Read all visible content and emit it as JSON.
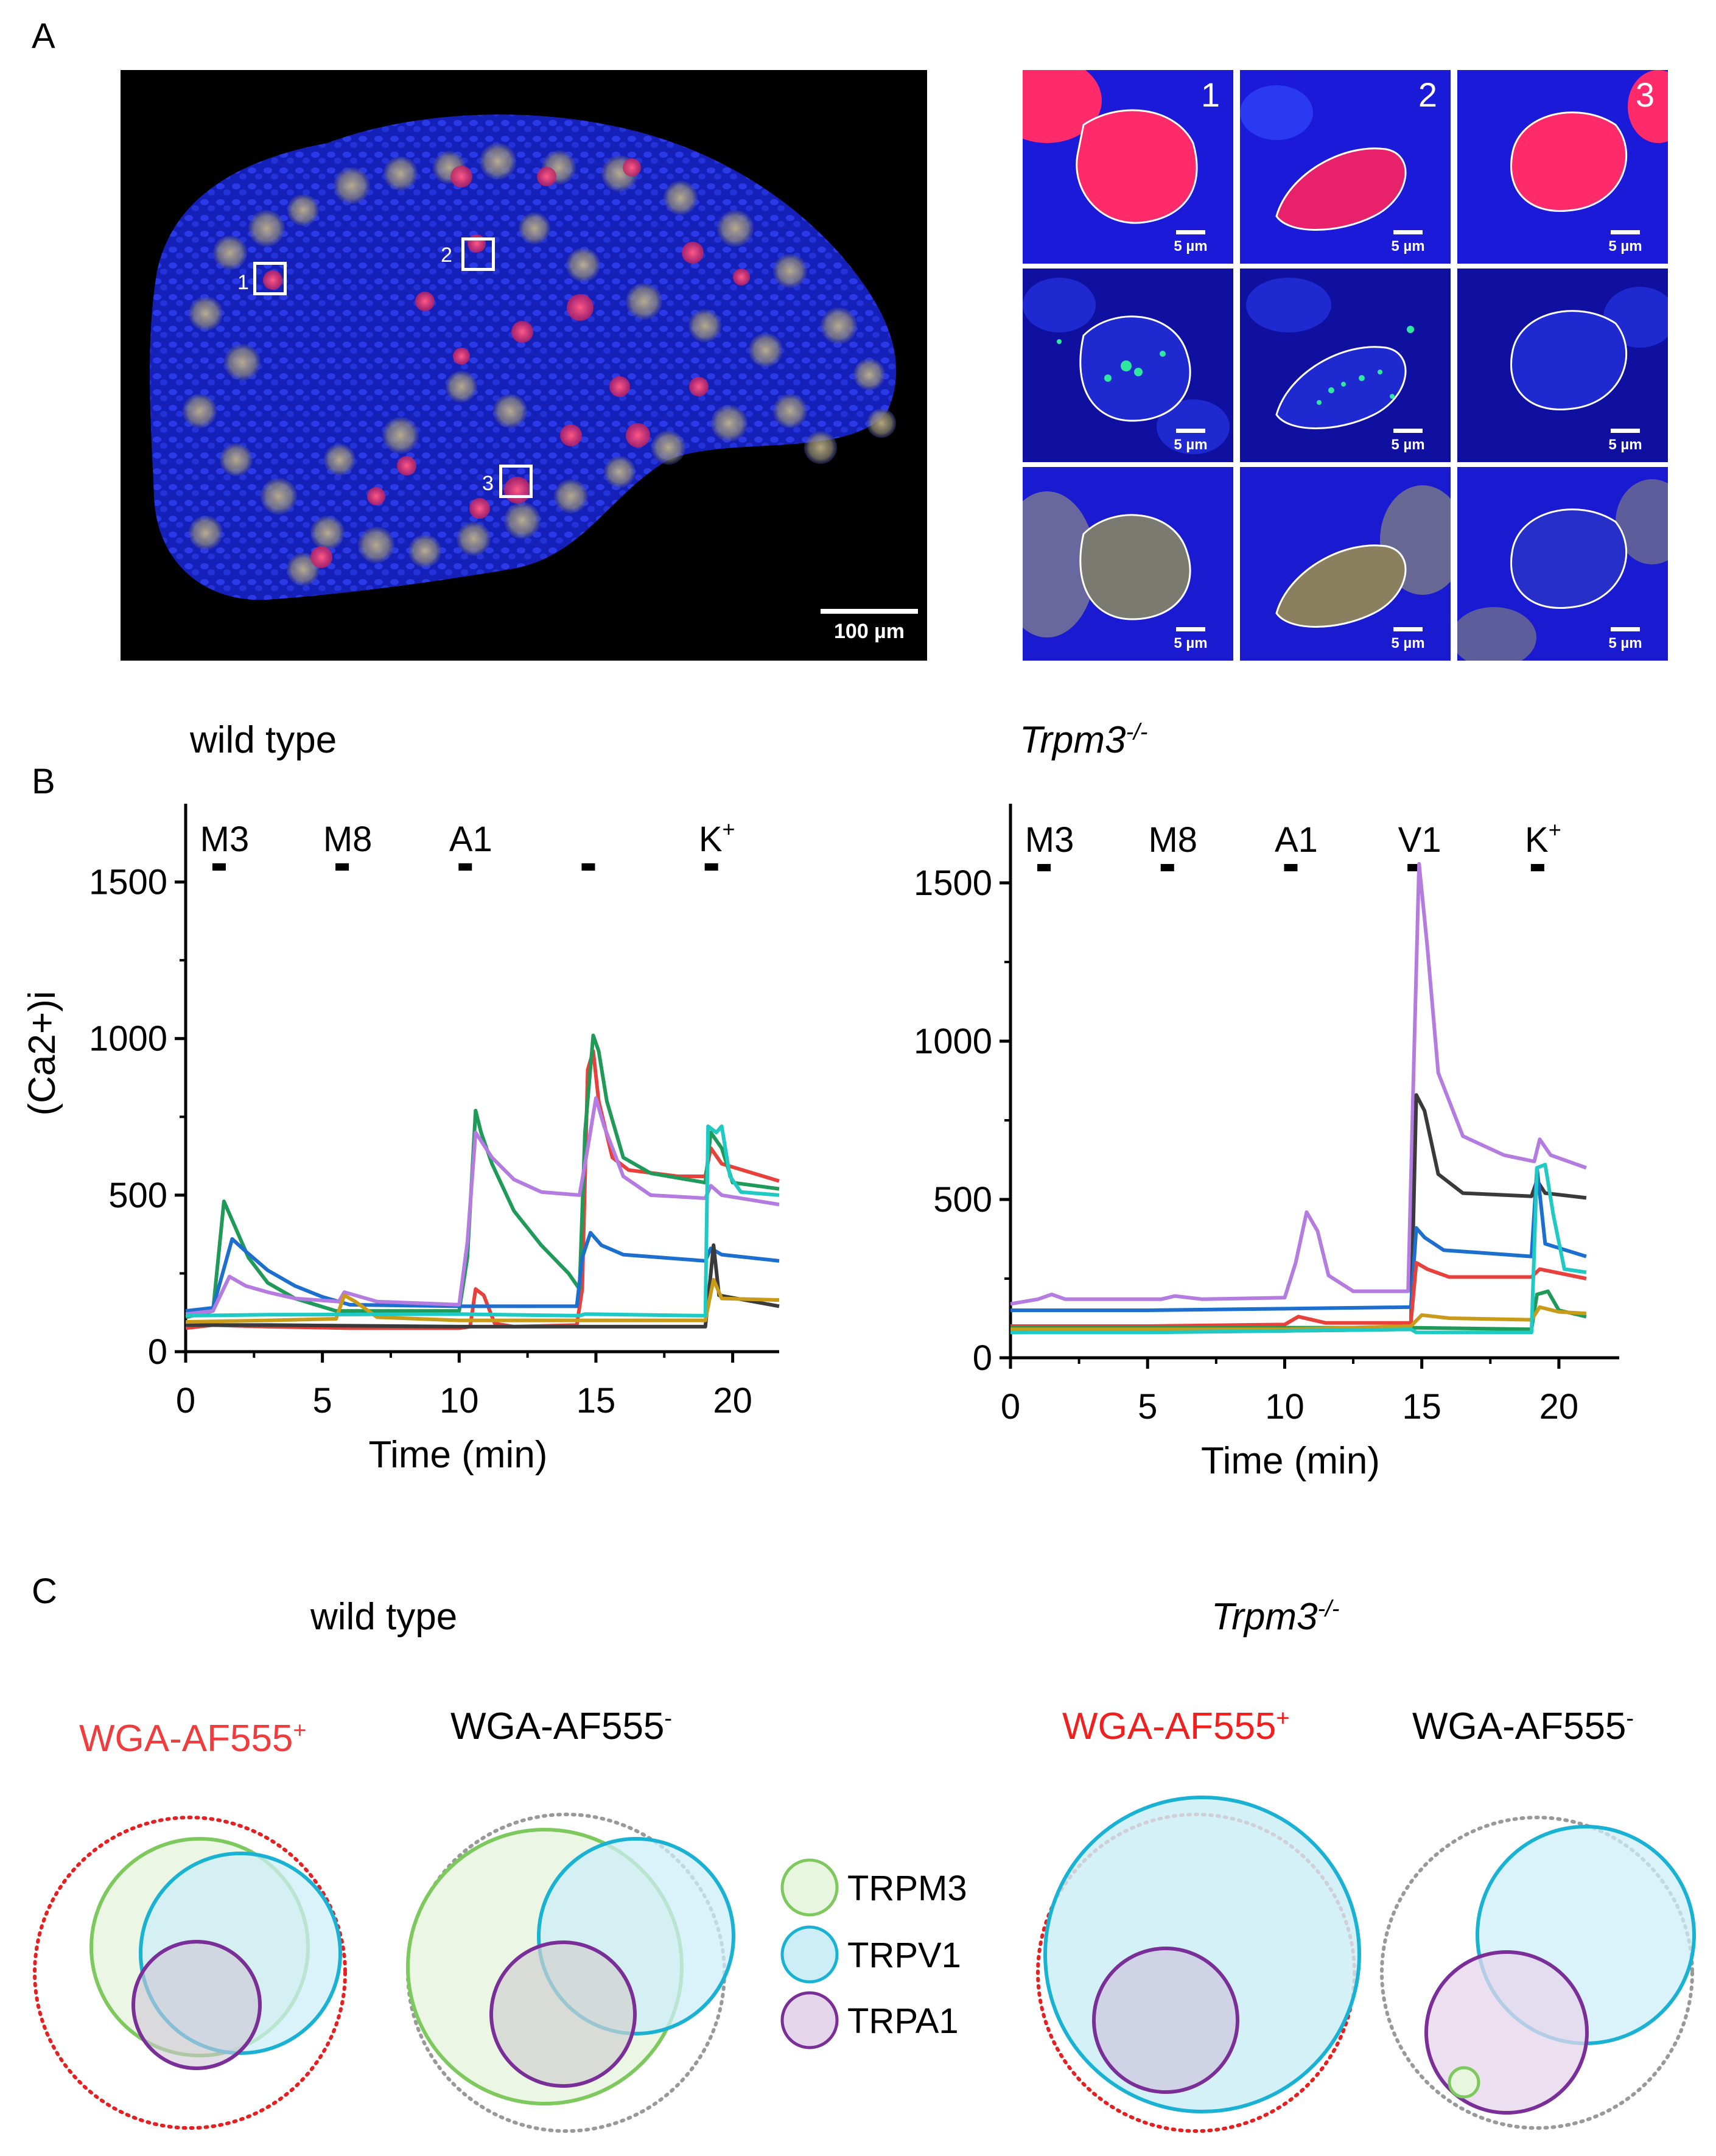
{
  "panelA": {
    "letter": "A",
    "scale_bar": "100 µm",
    "boxes": [
      "1",
      "2",
      "3"
    ],
    "tile_numbers": [
      "1",
      "2",
      "3"
    ],
    "tile_scale": "5 µm"
  },
  "panelB": {
    "letter": "B",
    "left_title": "wild type",
    "right_title": "Trpm3",
    "right_title_sup": "-/-"
  },
  "panelC": {
    "letter": "C",
    "left_title": "wild type",
    "right_title": "Trpm3",
    "right_title_sup": "-/-",
    "wga_pos": "WGA-AF555",
    "wga_pos_sup": "+",
    "wga_neg": "WGA-AF555",
    "wga_neg_sup": "-",
    "legend": [
      {
        "label": "TRPM3",
        "stroke": "#7dc95e",
        "fill": "#e8f5df"
      },
      {
        "label": "TRPV1",
        "stroke": "#1ab2d4",
        "fill": "#cdeef7"
      },
      {
        "label": "TRPA1",
        "stroke": "#7a2f98",
        "fill": "#e5d6eb"
      }
    ]
  },
  "chart_data": [
    {
      "type": "line",
      "title": "wild type",
      "xlabel": "Time (min)",
      "ylabel": "(Ca2+)i",
      "xlim": [
        0,
        21.7
      ],
      "ylim": [
        0,
        1750
      ],
      "xticks": [
        0,
        5,
        10,
        15,
        20
      ],
      "yticks": [
        0,
        500,
        1000,
        1500
      ],
      "stimuli": [
        {
          "label": "M3",
          "sup": "",
          "time": 1.2
        },
        {
          "label": "M8",
          "sup": "",
          "time": 5.7
        },
        {
          "label": "A1",
          "sup": "",
          "time": 10.2
        },
        {
          "label": "",
          "sup": "",
          "time": 14.7
        },
        {
          "label": "K",
          "sup": "+",
          "time": 19.2
        }
      ],
      "series": [
        {
          "name": "red",
          "color": "#e8413c",
          "points": [
            [
              0,
              75
            ],
            [
              1,
              85
            ],
            [
              3,
              80
            ],
            [
              6,
              75
            ],
            [
              10,
              75
            ],
            [
              10.4,
              80
            ],
            [
              10.6,
              200
            ],
            [
              10.9,
              180
            ],
            [
              11.3,
              90
            ],
            [
              12,
              80
            ],
            [
              14.3,
              85
            ],
            [
              14.5,
              200
            ],
            [
              14.7,
              900
            ],
            [
              14.9,
              960
            ],
            [
              15.1,
              800
            ],
            [
              15.6,
              620
            ],
            [
              16.2,
              580
            ],
            [
              18,
              560
            ],
            [
              19,
              560
            ],
            [
              19.2,
              650
            ],
            [
              19.6,
              600
            ],
            [
              21.7,
              545
            ]
          ]
        },
        {
          "name": "green",
          "color": "#1f9a58",
          "points": [
            [
              0,
              110
            ],
            [
              1,
              130
            ],
            [
              1.4,
              480
            ],
            [
              1.7,
              420
            ],
            [
              2.3,
              300
            ],
            [
              3,
              220
            ],
            [
              4,
              170
            ],
            [
              5.5,
              130
            ],
            [
              6,
              130
            ],
            [
              10,
              130
            ],
            [
              10.3,
              300
            ],
            [
              10.6,
              770
            ],
            [
              10.8,
              700
            ],
            [
              11.2,
              600
            ],
            [
              12,
              450
            ],
            [
              13,
              340
            ],
            [
              14,
              250
            ],
            [
              14.4,
              200
            ],
            [
              14.6,
              700
            ],
            [
              14.9,
              1010
            ],
            [
              15.1,
              960
            ],
            [
              15.4,
              800
            ],
            [
              16,
              620
            ],
            [
              17,
              570
            ],
            [
              19,
              540
            ],
            [
              19.2,
              700
            ],
            [
              19.6,
              650
            ],
            [
              20,
              540
            ],
            [
              21.7,
              520
            ]
          ]
        },
        {
          "name": "blue",
          "color": "#1c6fce",
          "points": [
            [
              0,
              130
            ],
            [
              1,
              140
            ],
            [
              1.7,
              360
            ],
            [
              2.2,
              320
            ],
            [
              3,
              260
            ],
            [
              4,
              210
            ],
            [
              5,
              175
            ],
            [
              6,
              150
            ],
            [
              10,
              145
            ],
            [
              14.3,
              145
            ],
            [
              14.5,
              300
            ],
            [
              14.8,
              380
            ],
            [
              15.2,
              340
            ],
            [
              16,
              310
            ],
            [
              19,
              290
            ],
            [
              19.2,
              330
            ],
            [
              19.6,
              310
            ],
            [
              21.7,
              290
            ]
          ]
        },
        {
          "name": "purple",
          "color": "#b47be0",
          "points": [
            [
              0,
              120
            ],
            [
              1,
              130
            ],
            [
              1.6,
              240
            ],
            [
              2.2,
              210
            ],
            [
              3,
              190
            ],
            [
              4,
              170
            ],
            [
              5.6,
              160
            ],
            [
              5.8,
              190
            ],
            [
              6.2,
              180
            ],
            [
              7,
              160
            ],
            [
              10,
              150
            ],
            [
              10.3,
              350
            ],
            [
              10.6,
              700
            ],
            [
              11.2,
              620
            ],
            [
              12,
              550
            ],
            [
              13,
              510
            ],
            [
              14.4,
              500
            ],
            [
              14.7,
              650
            ],
            [
              15,
              810
            ],
            [
              15.3,
              720
            ],
            [
              16,
              560
            ],
            [
              17,
              500
            ],
            [
              19,
              490
            ],
            [
              19.2,
              530
            ],
            [
              19.6,
              500
            ],
            [
              21.7,
              470
            ]
          ]
        },
        {
          "name": "black",
          "color": "#3a3a3a",
          "points": [
            [
              0,
              85
            ],
            [
              3,
              85
            ],
            [
              10,
              80
            ],
            [
              14,
              80
            ],
            [
              19,
              80
            ],
            [
              19.2,
              250
            ],
            [
              19.3,
              340
            ],
            [
              19.5,
              180
            ],
            [
              21.7,
              145
            ]
          ]
        },
        {
          "name": "gold",
          "color": "#c89b18",
          "points": [
            [
              0,
              95
            ],
            [
              3,
              100
            ],
            [
              5.5,
              105
            ],
            [
              5.8,
              180
            ],
            [
              6.2,
              160
            ],
            [
              7,
              110
            ],
            [
              10,
              100
            ],
            [
              14,
              100
            ],
            [
              19,
              100
            ],
            [
              19.3,
              230
            ],
            [
              19.6,
              170
            ],
            [
              21.7,
              165
            ]
          ]
        },
        {
          "name": "cyan",
          "color": "#1fc9c4",
          "points": [
            [
              0,
              115
            ],
            [
              3,
              118
            ],
            [
              10,
              120
            ],
            [
              14.4,
              115
            ],
            [
              14.6,
              120
            ],
            [
              19,
              115
            ],
            [
              19.1,
              720
            ],
            [
              19.4,
              700
            ],
            [
              19.6,
              720
            ],
            [
              19.9,
              560
            ],
            [
              20.3,
              510
            ],
            [
              21.7,
              500
            ]
          ]
        }
      ]
    },
    {
      "type": "line",
      "title": "Trpm3-/-",
      "xlabel": "Time (min)",
      "ylabel": "",
      "xlim": [
        0,
        22.2
      ],
      "ylim": [
        0,
        1750
      ],
      "xticks": [
        0,
        5,
        10,
        15,
        20
      ],
      "yticks": [
        0,
        500,
        1000,
        1500
      ],
      "stimuli": [
        {
          "label": "M3",
          "sup": "",
          "time": 1.2
        },
        {
          "label": "M8",
          "sup": "",
          "time": 5.7
        },
        {
          "label": "A1",
          "sup": "",
          "time": 10.2
        },
        {
          "label": "V1",
          "sup": "",
          "time": 14.7
        },
        {
          "label": "K",
          "sup": "+",
          "time": 19.2
        }
      ],
      "series": [
        {
          "name": "purple",
          "color": "#b47be0",
          "points": [
            [
              0,
              170
            ],
            [
              1,
              185
            ],
            [
              1.5,
              200
            ],
            [
              2,
              185
            ],
            [
              5.5,
              185
            ],
            [
              6,
              195
            ],
            [
              7,
              185
            ],
            [
              10,
              190
            ],
            [
              10.4,
              300
            ],
            [
              10.8,
              460
            ],
            [
              11.2,
              400
            ],
            [
              11.6,
              260
            ],
            [
              12.5,
              210
            ],
            [
              14.5,
              210
            ],
            [
              14.7,
              900
            ],
            [
              14.9,
              1560
            ],
            [
              15.2,
              1300
            ],
            [
              15.6,
              900
            ],
            [
              16.5,
              700
            ],
            [
              18,
              640
            ],
            [
              19.1,
              620
            ],
            [
              19.3,
              690
            ],
            [
              19.7,
              640
            ],
            [
              21,
              600
            ]
          ]
        },
        {
          "name": "black",
          "color": "#3a3a3a",
          "points": [
            [
              0,
              80
            ],
            [
              5,
              85
            ],
            [
              10,
              85
            ],
            [
              14.6,
              90
            ],
            [
              14.8,
              830
            ],
            [
              15.1,
              780
            ],
            [
              15.6,
              580
            ],
            [
              16.5,
              520
            ],
            [
              19,
              510
            ],
            [
              19.2,
              560
            ],
            [
              19.5,
              520
            ],
            [
              21,
              505
            ]
          ]
        },
        {
          "name": "blue",
          "color": "#1c6fce",
          "points": [
            [
              0,
              150
            ],
            [
              5,
              150
            ],
            [
              10,
              155
            ],
            [
              14.6,
              160
            ],
            [
              14.8,
              410
            ],
            [
              15.1,
              380
            ],
            [
              15.8,
              340
            ],
            [
              19,
              320
            ],
            [
              19.2,
              600
            ],
            [
              19.5,
              360
            ],
            [
              21,
              320
            ]
          ]
        },
        {
          "name": "red",
          "color": "#e8413c",
          "points": [
            [
              0,
              100
            ],
            [
              5,
              100
            ],
            [
              10,
              105
            ],
            [
              10.5,
              130
            ],
            [
              11.5,
              110
            ],
            [
              14.6,
              110
            ],
            [
              14.8,
              300
            ],
            [
              15.2,
              280
            ],
            [
              16,
              255
            ],
            [
              19,
              255
            ],
            [
              19.3,
              280
            ],
            [
              21,
              250
            ]
          ]
        },
        {
          "name": "green",
          "color": "#1f9a58",
          "points": [
            [
              0,
              95
            ],
            [
              5,
              95
            ],
            [
              10,
              95
            ],
            [
              14.6,
              95
            ],
            [
              19,
              90
            ],
            [
              19.2,
              200
            ],
            [
              19.6,
              210
            ],
            [
              20,
              150
            ],
            [
              21,
              130
            ]
          ]
        },
        {
          "name": "gold",
          "color": "#c89b18",
          "points": [
            [
              0,
              90
            ],
            [
              5,
              90
            ],
            [
              10,
              90
            ],
            [
              14.6,
              100
            ],
            [
              15,
              135
            ],
            [
              16,
              125
            ],
            [
              19,
              120
            ],
            [
              19.3,
              160
            ],
            [
              20,
              145
            ],
            [
              21,
              140
            ]
          ]
        },
        {
          "name": "cyan",
          "color": "#1fc9c4",
          "points": [
            [
              0,
              80
            ],
            [
              5,
              80
            ],
            [
              10,
              85
            ],
            [
              14.6,
              90
            ],
            [
              14.8,
              80
            ],
            [
              19,
              80
            ],
            [
              19.2,
              600
            ],
            [
              19.5,
              610
            ],
            [
              19.8,
              450
            ],
            [
              20.2,
              280
            ],
            [
              21,
              270
            ]
          ]
        }
      ]
    }
  ]
}
